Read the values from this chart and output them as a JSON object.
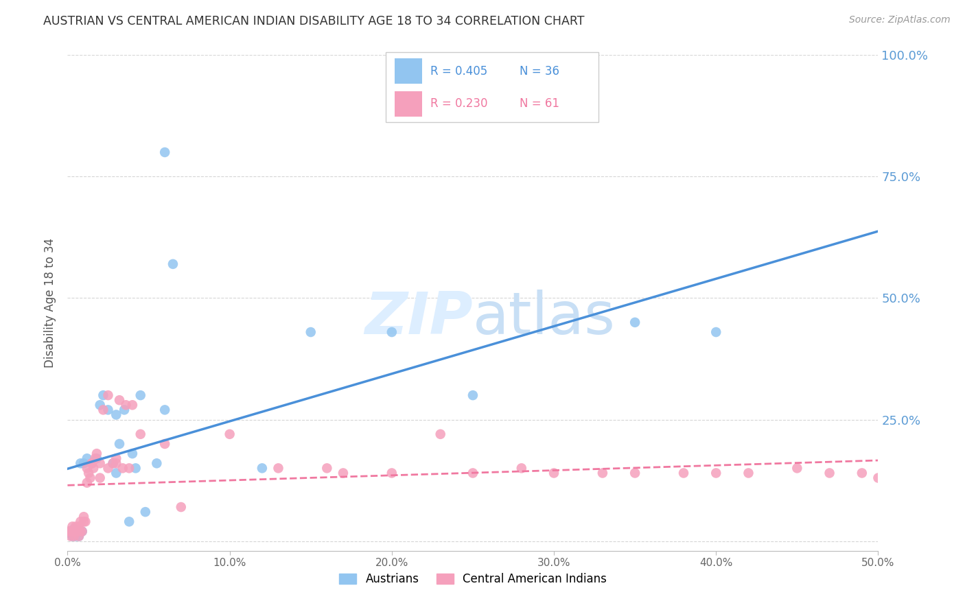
{
  "title": "AUSTRIAN VS CENTRAL AMERICAN INDIAN DISABILITY AGE 18 TO 34 CORRELATION CHART",
  "source": "Source: ZipAtlas.com",
  "ylabel_label": "Disability Age 18 to 34",
  "xlim": [
    0.0,
    0.5
  ],
  "ylim": [
    -0.02,
    1.0
  ],
  "xlabel_vals": [
    0.0,
    0.1,
    0.2,
    0.3,
    0.4,
    0.5
  ],
  "ylabel_vals": [
    0.0,
    0.25,
    0.5,
    0.75,
    1.0
  ],
  "right_ylabel_labels": [
    "",
    "25.0%",
    "50.0%",
    "75.0%",
    "100.0%"
  ],
  "blue_color": "#92c5f0",
  "pink_color": "#f5a0bc",
  "blue_line_color": "#4a90d9",
  "pink_line_color": "#f078a0",
  "watermark_color": "#ddeeff",
  "legend1_label": "Austrians",
  "legend2_label": "Central American Indians",
  "legend_r_blue": "R = 0.405",
  "legend_n_blue": "N = 36",
  "legend_r_pink": "R = 0.230",
  "legend_n_pink": "N = 61",
  "blue_text_color": "#4a90d9",
  "pink_text_color": "#f078a0",
  "right_axis_color": "#5b9bd5",
  "austrians_x": [
    0.001,
    0.002,
    0.003,
    0.004,
    0.005,
    0.006,
    0.007,
    0.008,
    0.009,
    0.01,
    0.012,
    0.015,
    0.018,
    0.02,
    0.022,
    0.025,
    0.028,
    0.03,
    0.032,
    0.035,
    0.038,
    0.04,
    0.042,
    0.045,
    0.048,
    0.055,
    0.06,
    0.065,
    0.12,
    0.15,
    0.2,
    0.25,
    0.35,
    0.4,
    0.06,
    0.03
  ],
  "austrians_y": [
    0.02,
    0.015,
    0.01,
    0.025,
    0.01,
    0.02,
    0.01,
    0.16,
    0.02,
    0.16,
    0.17,
    0.16,
    0.17,
    0.28,
    0.3,
    0.27,
    0.16,
    0.14,
    0.2,
    0.27,
    0.04,
    0.18,
    0.15,
    0.3,
    0.06,
    0.16,
    0.8,
    0.57,
    0.15,
    0.43,
    0.43,
    0.3,
    0.45,
    0.43,
    0.27,
    0.26
  ],
  "central_x": [
    0.001,
    0.002,
    0.002,
    0.003,
    0.003,
    0.004,
    0.004,
    0.005,
    0.005,
    0.006,
    0.007,
    0.007,
    0.008,
    0.008,
    0.009,
    0.01,
    0.01,
    0.011,
    0.012,
    0.013,
    0.014,
    0.015,
    0.016,
    0.017,
    0.018,
    0.02,
    0.022,
    0.025,
    0.028,
    0.03,
    0.032,
    0.034,
    0.036,
    0.038,
    0.04,
    0.045,
    0.06,
    0.07,
    0.1,
    0.13,
    0.16,
    0.17,
    0.2,
    0.23,
    0.25,
    0.28,
    0.3,
    0.33,
    0.35,
    0.38,
    0.4,
    0.42,
    0.45,
    0.47,
    0.49,
    0.5,
    0.03,
    0.025,
    0.02,
    0.015,
    0.012
  ],
  "central_y": [
    0.02,
    0.01,
    0.02,
    0.02,
    0.03,
    0.01,
    0.02,
    0.02,
    0.03,
    0.02,
    0.01,
    0.03,
    0.04,
    0.02,
    0.02,
    0.04,
    0.05,
    0.04,
    0.12,
    0.14,
    0.13,
    0.16,
    0.15,
    0.17,
    0.18,
    0.16,
    0.27,
    0.3,
    0.16,
    0.17,
    0.29,
    0.15,
    0.28,
    0.15,
    0.28,
    0.22,
    0.2,
    0.07,
    0.22,
    0.15,
    0.15,
    0.14,
    0.14,
    0.22,
    0.14,
    0.15,
    0.14,
    0.14,
    0.14,
    0.14,
    0.14,
    0.14,
    0.15,
    0.14,
    0.14,
    0.13,
    0.16,
    0.15,
    0.13,
    0.16,
    0.15
  ]
}
